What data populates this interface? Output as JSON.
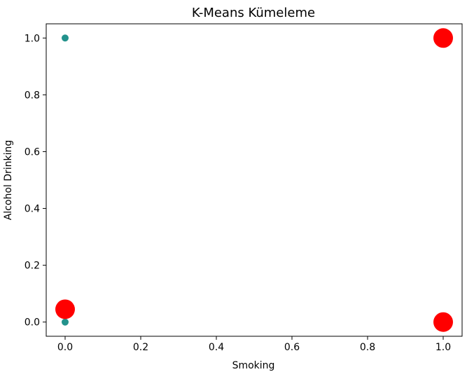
{
  "chart_data": {
    "type": "scatter",
    "title": "K-Means Kümeleme",
    "xlabel": "Smoking",
    "ylabel": "Alcohol Drinking",
    "xlim": [
      -0.05,
      1.05
    ],
    "ylim": [
      -0.05,
      1.05
    ],
    "xticks": [
      0.0,
      0.2,
      0.4,
      0.6,
      0.8,
      1.0
    ],
    "xtick_labels": [
      "0.0",
      "0.2",
      "0.4",
      "0.6",
      "0.8",
      "1.0"
    ],
    "yticks": [
      0.0,
      0.2,
      0.4,
      0.6,
      0.8,
      1.0
    ],
    "ytick_labels": [
      "0.0",
      "0.2",
      "0.4",
      "0.6",
      "0.8",
      "1.0"
    ],
    "grid": false,
    "series": [
      {
        "color": "#23928c",
        "marker": "circle",
        "points": [
          {
            "x": 0.0,
            "y": 1.0
          },
          {
            "x": 0.0,
            "y": 0.0
          }
        ]
      },
      {
        "color": "#ff0000",
        "marker": "circle-large",
        "points": [
          {
            "x": 0.0,
            "y": 0.045
          },
          {
            "x": 1.0,
            "y": 1.0
          },
          {
            "x": 1.0,
            "y": 0.0
          }
        ]
      }
    ]
  }
}
